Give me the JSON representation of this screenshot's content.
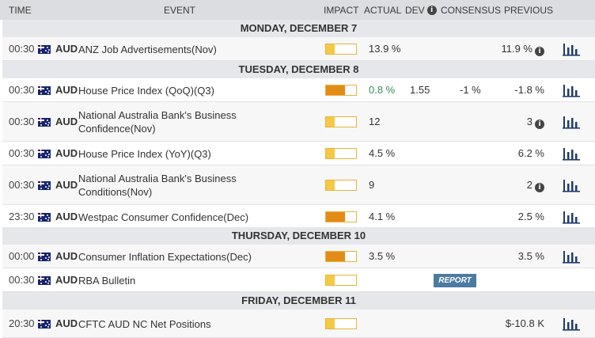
{
  "header": {
    "time": "TIME",
    "event": "EVENT",
    "impact": "IMPACT",
    "actual": "ACTUAL",
    "dev": "DEV",
    "consensus": "CONSENSUS",
    "previous": "PREVIOUS"
  },
  "days": [
    "MONDAY, DECEMBER 7",
    "TUESDAY, DECEMBER 8",
    "THURSDAY, DECEMBER 10",
    "FRIDAY, DECEMBER 11"
  ],
  "events": [
    {
      "time": "00:30",
      "currency": "AUD",
      "event": "ANZ Job Advertisements(Nov)",
      "impact_level": "low",
      "actual": "13.9 %",
      "dev": "",
      "consensus": "",
      "previous": "11.9 %",
      "previous_info": true
    },
    {
      "time": "00:30",
      "currency": "AUD",
      "event": "House Price Index (QoQ)(Q3)",
      "impact_level": "medium",
      "actual": "0.8 %",
      "actual_color": "#3a8a5c",
      "dev": "1.55",
      "consensus": "-1 %",
      "previous": "-1.8 %",
      "previous_info": false
    },
    {
      "time": "00:30",
      "currency": "AUD",
      "event_lines": [
        "National Australia Bank's Business",
        "Confidence(Nov)"
      ],
      "impact_level": "low",
      "actual": "12",
      "dev": "",
      "consensus": "",
      "previous": "3",
      "previous_info": true
    },
    {
      "time": "00:30",
      "currency": "AUD",
      "event": "House Price Index (YoY)(Q3)",
      "impact_level": "low",
      "actual": "4.5 %",
      "dev": "",
      "consensus": "",
      "previous": "6.2 %",
      "previous_info": false
    },
    {
      "time": "00:30",
      "currency": "AUD",
      "event_lines": [
        "National Australia Bank's Business",
        "Conditions(Nov)"
      ],
      "impact_level": "low",
      "actual": "9",
      "dev": "",
      "consensus": "",
      "previous": "2",
      "previous_info": true
    },
    {
      "time": "23:30",
      "currency": "AUD",
      "event": "Westpac Consumer Confidence(Dec)",
      "impact_level": "medium",
      "actual": "4.1 %",
      "dev": "",
      "consensus": "",
      "previous": "2.5 %",
      "previous_info": false
    },
    {
      "time": "00:00",
      "currency": "AUD",
      "event": "Consumer Inflation Expectations(Dec)",
      "impact_level": "medium",
      "actual": "3.5 %",
      "dev": "",
      "consensus": "",
      "previous": "3.5 %",
      "previous_info": false
    },
    {
      "time": "00:30",
      "currency": "AUD",
      "event": "RBA Bulletin",
      "impact_level": "low",
      "actual": "",
      "dev": "",
      "consensus": "",
      "previous": "",
      "previous_info": false,
      "report_label": "REPORT"
    },
    {
      "time": "20:30",
      "currency": "AUD",
      "event": "CFTC AUD NC Net Positions",
      "impact_level": "low",
      "actual": "",
      "dev": "",
      "consensus": "",
      "previous": "$-10.8 K",
      "previous_info": false
    }
  ],
  "colors": {
    "impact_low_fill": "#f6c945",
    "impact_medium_fill": "#e38b17",
    "impact_border": "#e8b33a",
    "actual_positive": "#3a8a5c",
    "report_bg": "#4b7aa3",
    "chart_icon": "#1f3c6e"
  },
  "icons": {
    "info": "info-circle-icon",
    "chart": "bar-chart-icon",
    "flag": "australia-flag-icon"
  }
}
